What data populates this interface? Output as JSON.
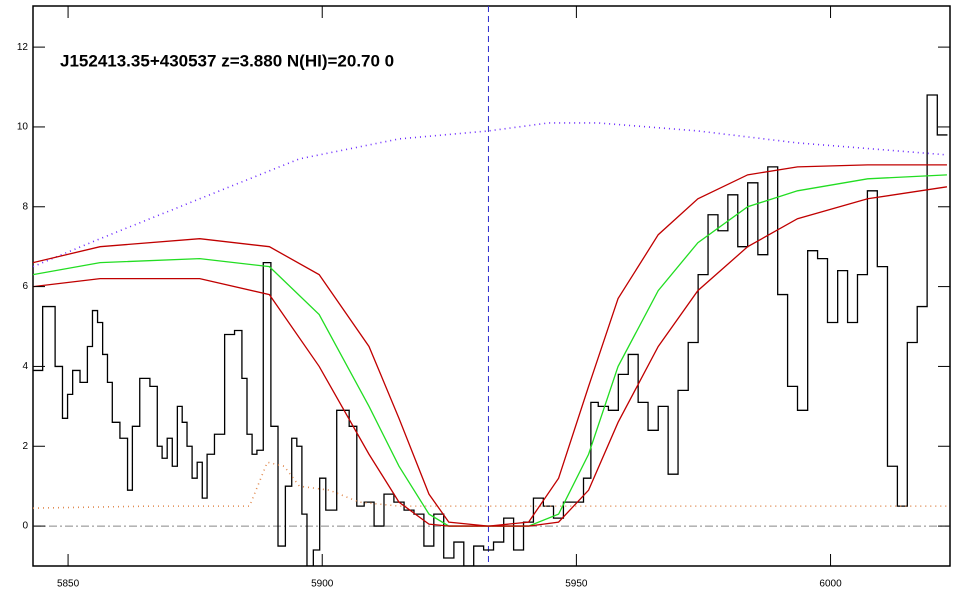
{
  "chart_data": {
    "type": "line",
    "title": "J152413.35+430537 z=3.880 N(HI)=20.70 0",
    "xlim": [
      5843.1,
      6023.5
    ],
    "ylim": [
      -1,
      13.03
    ],
    "xticks": [
      5850,
      5900,
      5950,
      6000
    ],
    "yticks": [
      0,
      2,
      4,
      6,
      8,
      10,
      12
    ],
    "vline": 5932.7,
    "vline_color": "#2a2ad0",
    "hline": 0,
    "hline_color": "#888888",
    "series": [
      {
        "name": "flux",
        "color": "#000000",
        "style": "solid",
        "drawstyle": "steps-mid",
        "x": [
          5843.5,
          5846.5,
          5848.4,
          5849.4,
          5850.4,
          5851.4,
          5853.3,
          5854.3,
          5855.3,
          5856.3,
          5857.3,
          5858.2,
          5859.2,
          5861.2,
          5862.2,
          5863.1,
          5865.1,
          5867.1,
          5868.0,
          5869.0,
          5870.0,
          5871.0,
          5872.0,
          5872.9,
          5873.9,
          5874.9,
          5875.9,
          5876.9,
          5877.8,
          5879.8,
          5881.8,
          5883.7,
          5884.7,
          5885.7,
          5886.7,
          5887.6,
          5889.2,
          5890.6,
          5892.0,
          5893.5,
          5894.5,
          5895.5,
          5896.5,
          5897.5,
          5899.0,
          5900.0,
          5901.4,
          5904.3,
          5906.3,
          5907.3,
          5909.2,
          5911.2,
          5913.1,
          5915.1,
          5917.1,
          5919.0,
          5921.0,
          5922.9,
          5924.9,
          5926.9,
          5928.8,
          5930.8,
          5932.7,
          5934.7,
          5936.7,
          5938.6,
          5940.6,
          5942.5,
          5944.5,
          5946.5,
          5948.4,
          5950.4,
          5952.4,
          5953.3,
          5955.3,
          5957.3,
          5959.2,
          5961.2,
          5963.1,
          5965.1,
          5967.1,
          5969.0,
          5971.0,
          5973.0,
          5974.9,
          5976.9,
          5978.8,
          5980.8,
          5982.7,
          5984.7,
          5986.7,
          5988.6,
          5990.6,
          5992.5,
          5994.5,
          5996.5,
          5998.4,
          6000.4,
          6002.4,
          6004.3,
          6006.3,
          6008.2,
          6010.2,
          6012.2,
          6014.1,
          6016.1,
          6018.0,
          6020.0,
          6022.0
        ],
        "values": [
          3.9,
          5.5,
          4.0,
          2.7,
          3.3,
          3.9,
          3.6,
          4.5,
          5.4,
          5.1,
          4.3,
          3.6,
          2.6,
          2.2,
          0.9,
          2.5,
          3.7,
          3.5,
          2.0,
          1.7,
          2.2,
          1.5,
          3.0,
          2.6,
          2.0,
          1.2,
          1.6,
          0.7,
          1.8,
          2.3,
          4.8,
          4.9,
          3.7,
          2.3,
          1.8,
          1.9,
          6.6,
          2.5,
          -0.5,
          1.0,
          2.2,
          2.0,
          0.3,
          -1,
          -0.6,
          1.2,
          0.4,
          2.9,
          2.5,
          0.5,
          0.6,
          0.0,
          0.8,
          0.6,
          0.4,
          0.3,
          -0.5,
          0.3,
          -0.8,
          -0.4,
          -1,
          -0.5,
          -0.6,
          -0.4,
          0.2,
          -0.6,
          0.1,
          0.7,
          0.5,
          0.2,
          0.6,
          0.6,
          1.2,
          3.1,
          3.0,
          2.9,
          3.8,
          4.3,
          3.1,
          2.4,
          3.0,
          1.3,
          3.4,
          4.6,
          6.3,
          7.8,
          7.4,
          8.3,
          7.0,
          8.6,
          6.8,
          9.0,
          5.8,
          3.5,
          2.9,
          6.9,
          6.7,
          5.1,
          6.4,
          5.1,
          6.3,
          8.4,
          6.5,
          1.5,
          0.5,
          4.6,
          5.5,
          10.8,
          9.8
        ]
      },
      {
        "name": "error",
        "color": "#e08a50",
        "style": "dotted",
        "x": [
          5843.1,
          5866.1,
          5885.7,
          5889.2,
          5892.5,
          5895.5,
          5901.4,
          5907.3,
          5915.1,
          5934.7,
          5954.3,
          5973.9,
          5993.5,
          6013.1,
          6022.9
        ],
        "values": [
          0.45,
          0.5,
          0.5,
          1.6,
          1.5,
          1.0,
          0.9,
          0.6,
          0.5,
          0.5,
          0.5,
          0.5,
          0.5,
          0.5,
          0.5
        ]
      },
      {
        "name": "continuum",
        "color": "#6a28ff",
        "style": "dotted",
        "x": [
          5843.1,
          5856.3,
          5875.9,
          5895.5,
          5915.1,
          5932.7,
          5944.5,
          5954.3,
          5973.9,
          5993.5,
          6013.1,
          6022.9
        ],
        "values": [
          6.5,
          7.2,
          8.2,
          9.2,
          9.7,
          9.9,
          10.1,
          10.1,
          9.9,
          9.6,
          9.4,
          9.3
        ]
      },
      {
        "name": "fit",
        "color": "#22dd22",
        "style": "solid",
        "x": [
          5843.1,
          5856.3,
          5875.9,
          5889.6,
          5899.4,
          5909.2,
          5915.1,
          5921.0,
          5924.9,
          5932.7,
          5940.6,
          5946.5,
          5952.4,
          5958.2,
          5966.1,
          5973.9,
          5983.7,
          5993.5,
          6007.3,
          6022.9
        ],
        "values": [
          6.3,
          6.6,
          6.7,
          6.5,
          5.3,
          3.0,
          1.5,
          0.3,
          0.0,
          0.0,
          0.0,
          0.3,
          1.8,
          4.0,
          5.9,
          7.1,
          8.0,
          8.4,
          8.7,
          8.8
        ]
      },
      {
        "name": "fit-upper",
        "color": "#c00000",
        "style": "solid",
        "x": [
          5843.1,
          5856.3,
          5875.9,
          5889.6,
          5899.4,
          5909.2,
          5915.1,
          5921.0,
          5924.9,
          5932.7,
          5940.6,
          5946.5,
          5952.4,
          5958.2,
          5966.1,
          5973.9,
          5983.7,
          5993.5,
          6007.3,
          6022.9
        ],
        "values": [
          6.6,
          7.0,
          7.2,
          7.0,
          6.3,
          4.5,
          2.7,
          0.8,
          0.1,
          0.0,
          0.1,
          1.2,
          3.5,
          5.7,
          7.3,
          8.2,
          8.8,
          9.0,
          9.05,
          9.05
        ]
      },
      {
        "name": "fit-lower",
        "color": "#c00000",
        "style": "solid",
        "x": [
          5843.1,
          5856.3,
          5875.9,
          5889.6,
          5899.4,
          5909.2,
          5915.1,
          5921.0,
          5924.9,
          5932.7,
          5940.6,
          5946.5,
          5952.4,
          5958.2,
          5966.1,
          5973.9,
          5983.7,
          5993.5,
          6007.3,
          6022.9
        ],
        "values": [
          6.0,
          6.2,
          6.2,
          5.8,
          4.0,
          1.8,
          0.6,
          0.05,
          0.0,
          0.0,
          0.0,
          0.1,
          0.9,
          2.6,
          4.5,
          5.9,
          7.0,
          7.7,
          8.2,
          8.5
        ]
      }
    ]
  }
}
